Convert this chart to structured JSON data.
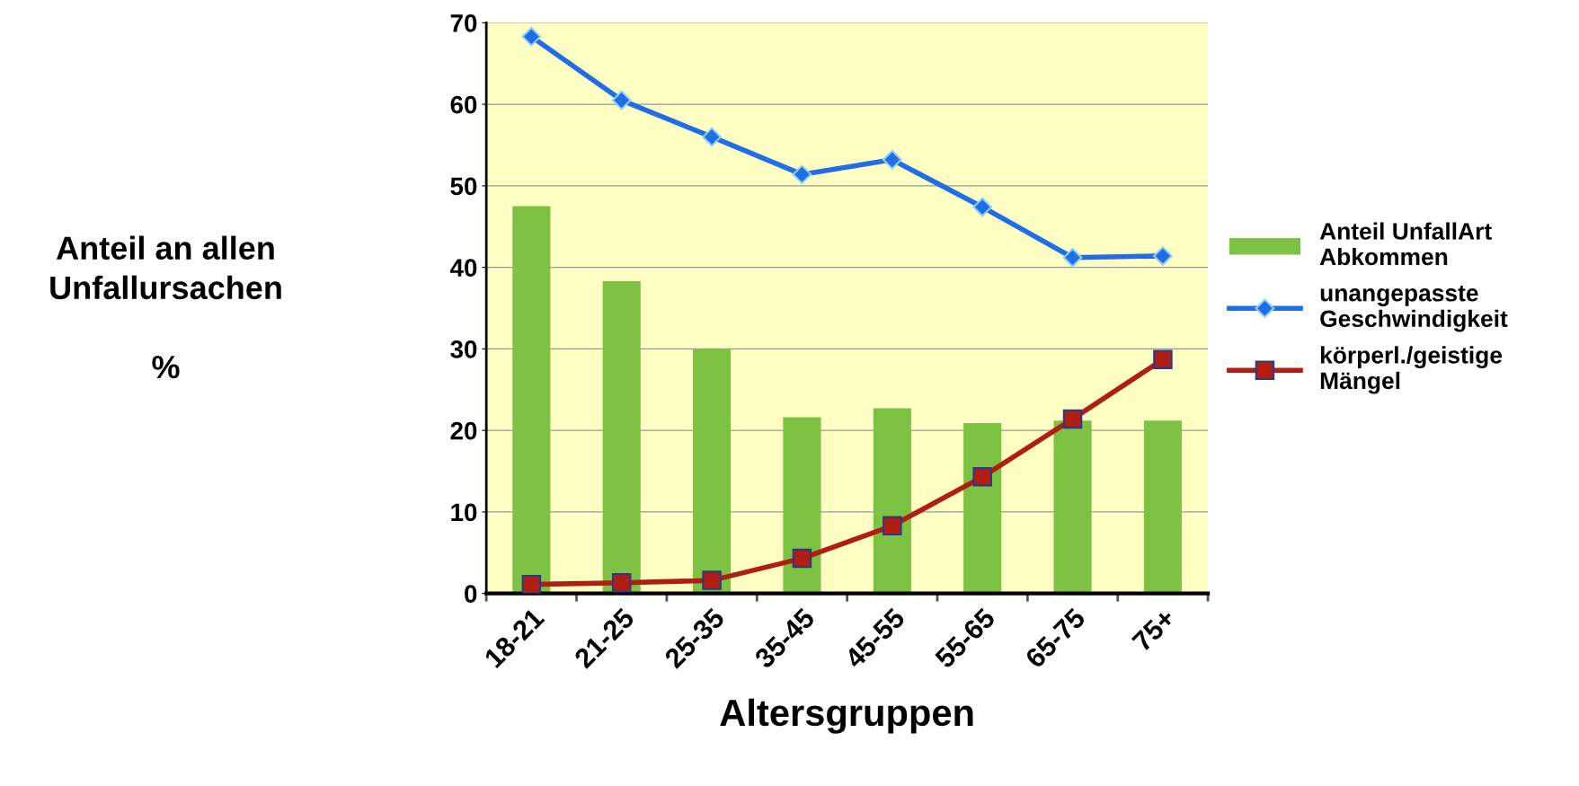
{
  "chart_data": {
    "type": "bar",
    "xlabel": "Altersgruppen",
    "ylabel": "Anteil an allen\nUnfallursachen\n\n%",
    "categories": [
      "18-21",
      "21-25",
      "25-35",
      "35-45",
      "45-55",
      "55-65",
      "65-75",
      "75+"
    ],
    "series": [
      {
        "name": "Anteil UnfallArt\nAbkommen",
        "color": "#7dc242",
        "values": [
          47.5,
          38.3,
          30.0,
          21.6,
          22.7,
          20.9,
          21.2,
          21.2
        ]
      },
      {
        "name": "unangepasste\nGeschwindigkeit",
        "color": "#1f6ee8",
        "type": "line",
        "marker": "diamond",
        "values": [
          68.3,
          60.5,
          56.0,
          51.4,
          53.2,
          47.4,
          41.2,
          41.4
        ]
      },
      {
        "name": "körperl./geistige\nMängel",
        "color": "#b01e12",
        "type": "line",
        "marker": "square",
        "values": [
          1.1,
          1.3,
          1.6,
          4.3,
          8.3,
          14.3,
          21.4,
          28.7
        ]
      }
    ],
    "ylim": [
      0,
      70
    ],
    "yticks": [
      0,
      10,
      20,
      30,
      40,
      50,
      60,
      70
    ],
    "grid": "y",
    "legend": "right"
  }
}
